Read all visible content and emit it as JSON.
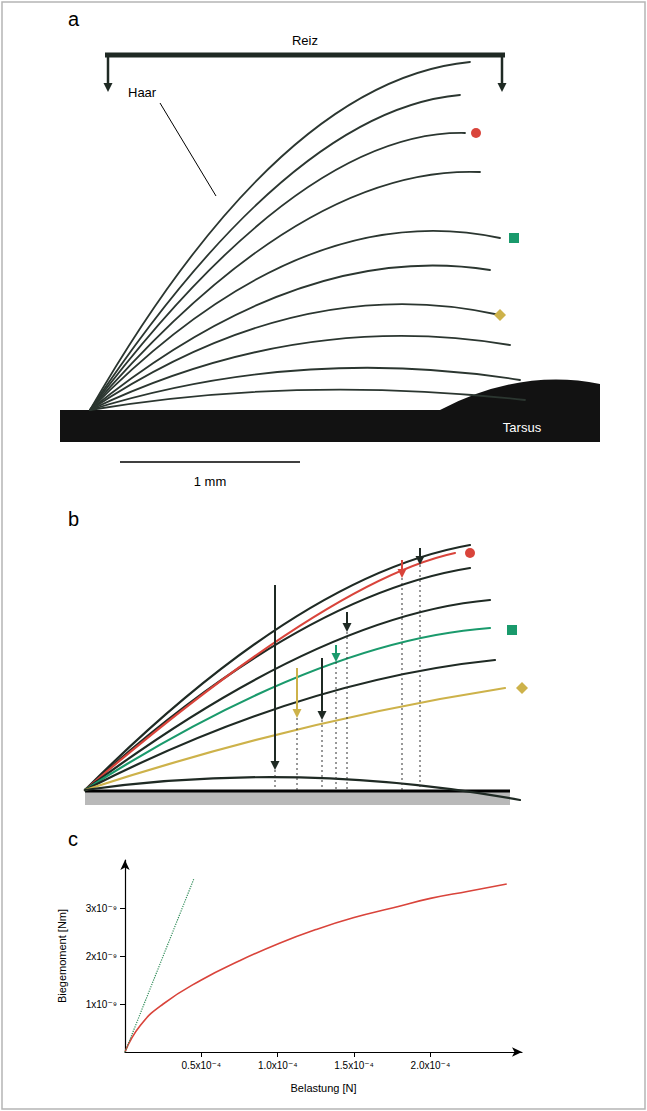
{
  "panels": [
    {
      "letter": "a",
      "labels": {
        "stimulus": "Reiz",
        "hair": "Haar",
        "base": "Tarsus",
        "scale_bar": "1 mm"
      }
    },
    {
      "letter": "b"
    }
  ],
  "chart_data": {
    "panel_letter": "c",
    "type": "line",
    "x_label": "Belastung [N]",
    "y_label": "Biegemoment [Nm]",
    "xlim": [
      0,
      0.00026
    ],
    "ylim": [
      0,
      4e-09
    ],
    "xticks": [
      {
        "value": 5e-05,
        "label": "0.5x10⁻⁴"
      },
      {
        "value": 0.0001,
        "label": "1.0x10⁻⁴"
      },
      {
        "value": 0.00015,
        "label": "1.5x10⁻⁴"
      },
      {
        "value": 0.0002,
        "label": "2.0x10⁻⁴"
      }
    ],
    "yticks": [
      {
        "value": 1e-09,
        "label": "1x10⁻⁹"
      },
      {
        "value": 2e-09,
        "label": "2x10⁻⁹"
      },
      {
        "value": 3e-09,
        "label": "3x10⁻⁹"
      }
    ],
    "grid": false,
    "series": [
      {
        "color": "#d9443b",
        "line_style": "solid",
        "x": [
          0,
          1e-05,
          2.5e-05,
          5e-05,
          7.5e-05,
          0.0001,
          0.000125,
          0.00015,
          0.000175,
          0.0002,
          0.000225,
          0.00025
        ],
        "values": [
          0,
          5.5e-10,
          1e-09,
          1.5e-09,
          1.9e-09,
          2.25e-09,
          2.55e-09,
          2.8e-09,
          3e-09,
          3.2e-09,
          3.35e-09,
          3.5e-09
        ]
      },
      {
        "color": "#2e8b57",
        "line_style": "dotted",
        "x": [
          0,
          4.5e-05
        ],
        "values": [
          0,
          3.6e-09
        ]
      }
    ]
  }
}
